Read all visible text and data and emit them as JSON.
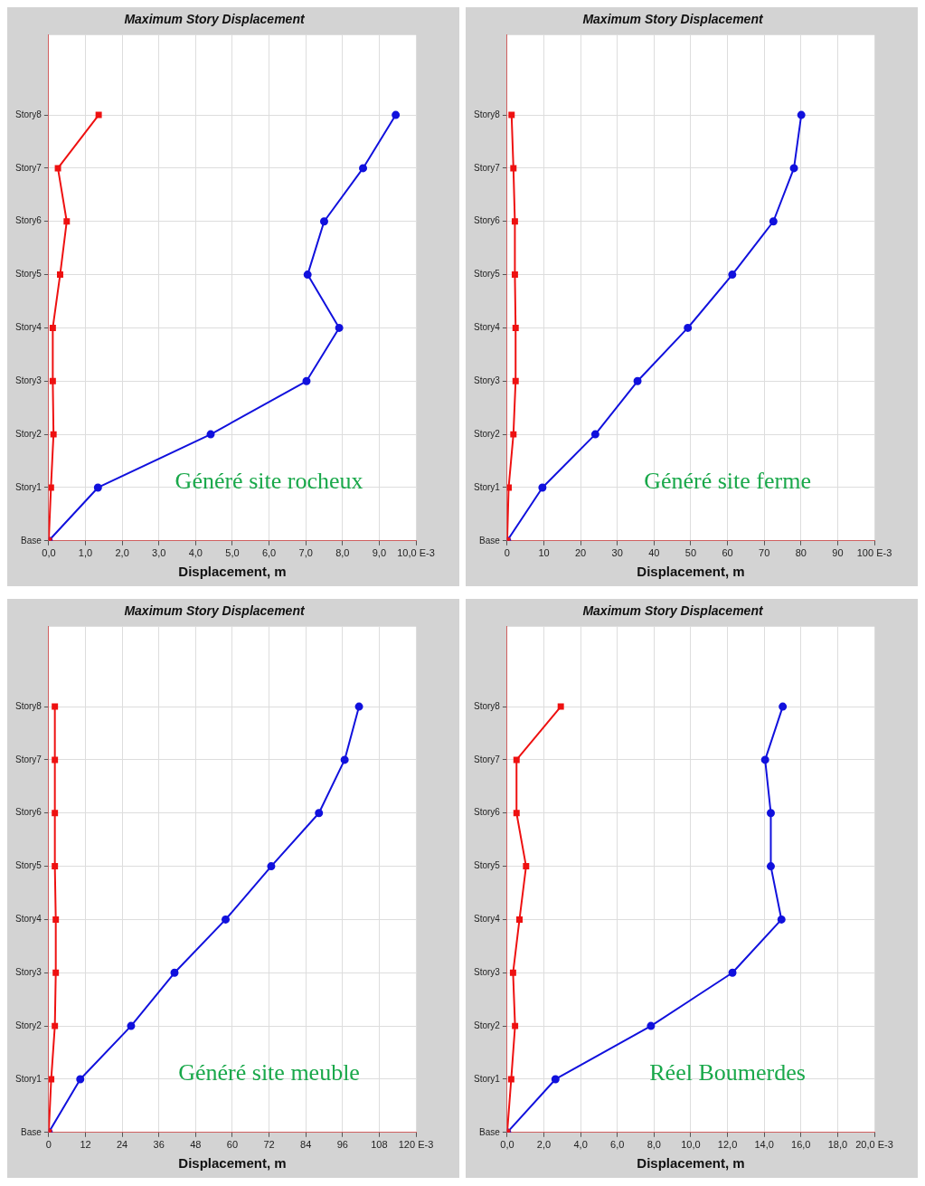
{
  "chart_data": [
    {
      "type": "line",
      "title": "Maximum Story Displacement",
      "xlabel": "Displacement, m",
      "orientation": "horizontal",
      "grid": true,
      "categories": [
        "Story8",
        "Story7",
        "Story6",
        "Story5",
        "Story4",
        "Story3",
        "Story2",
        "Story1",
        "Base"
      ],
      "xlim": [
        0,
        10
      ],
      "xticks": [
        {
          "value": 0,
          "label": "0,0"
        },
        {
          "value": 1,
          "label": "1,0"
        },
        {
          "value": 2,
          "label": "2,0"
        },
        {
          "value": 3,
          "label": "3,0"
        },
        {
          "value": 4,
          "label": "4,0"
        },
        {
          "value": 5,
          "label": "5,0"
        },
        {
          "value": 6,
          "label": "6,0"
        },
        {
          "value": 7,
          "label": "7,0"
        },
        {
          "value": 8,
          "label": "8,0"
        },
        {
          "value": 9,
          "label": "9,0"
        },
        {
          "value": 10,
          "label": "10,0 E-3"
        }
      ],
      "annotations": [
        "Généré site rocheux"
      ],
      "series": [
        {
          "color": "#ee1111",
          "marker": "square",
          "values": [
            1.36,
            0.25,
            0.49,
            0.31,
            0.11,
            0.11,
            0.13,
            0.06,
            0
          ]
        },
        {
          "color": "#1111dd",
          "marker": "circle",
          "values": [
            9.45,
            8.56,
            7.5,
            7.05,
            7.91,
            7.02,
            4.41,
            1.34,
            0
          ]
        }
      ]
    },
    {
      "type": "line",
      "title": "Maximum Story Displacement",
      "xlabel": "Displacement, m",
      "orientation": "horizontal",
      "grid": true,
      "categories": [
        "Story8",
        "Story7",
        "Story6",
        "Story5",
        "Story4",
        "Story3",
        "Story2",
        "Story1",
        "Base"
      ],
      "xlim": [
        0,
        100
      ],
      "xticks": [
        0,
        10,
        20,
        30,
        40,
        50,
        60,
        70,
        80,
        90,
        {
          "value": 100,
          "label": "100 E-3"
        }
      ],
      "annotations": [
        "Généré site ferme"
      ],
      "series": [
        {
          "color": "#ee1111",
          "marker": "square",
          "values": [
            1.2,
            1.7,
            2.1,
            2.1,
            2.3,
            2.3,
            1.7,
            0.4,
            0
          ]
        },
        {
          "color": "#1111dd",
          "marker": "circle",
          "values": [
            80.1,
            78.1,
            72.5,
            61.3,
            49.2,
            35.5,
            24,
            9.6,
            0
          ]
        }
      ]
    },
    {
      "type": "line",
      "title": "Maximum Story Displacement",
      "xlabel": "Displacement, m",
      "orientation": "horizontal",
      "grid": true,
      "categories": [
        "Story8",
        "Story7",
        "Story6",
        "Story5",
        "Story4",
        "Story3",
        "Story2",
        "Story1",
        "Base"
      ],
      "xlim": [
        0,
        120
      ],
      "xticks": [
        0,
        12,
        24,
        36,
        48,
        60,
        72,
        84,
        96,
        108,
        {
          "value": 120,
          "label": "120 E-3"
        }
      ],
      "annotations": [
        "Généré site meuble"
      ],
      "series": [
        {
          "color": "#ee1111",
          "marker": "square",
          "values": [
            2,
            2,
            2,
            2,
            2.3,
            2.3,
            2,
            0.8,
            0
          ]
        },
        {
          "color": "#1111dd",
          "marker": "circle",
          "values": [
            101.4,
            96.7,
            88.3,
            72.7,
            57.8,
            41.1,
            26.9,
            10.3,
            0
          ]
        }
      ]
    },
    {
      "type": "line",
      "title": "Maximum Story Displacement",
      "xlabel": "Displacement, m",
      "orientation": "horizontal",
      "grid": true,
      "categories": [
        "Story8",
        "Story7",
        "Story6",
        "Story5",
        "Story4",
        "Story3",
        "Story2",
        "Story1",
        "Base"
      ],
      "xlim": [
        0,
        20
      ],
      "xticks": [
        {
          "value": 0,
          "label": "0,0"
        },
        {
          "value": 2,
          "label": "2,0"
        },
        {
          "value": 4,
          "label": "4,0"
        },
        {
          "value": 6,
          "label": "6,0"
        },
        {
          "value": 8,
          "label": "8,0"
        },
        {
          "value": 10,
          "label": "10,0"
        },
        {
          "value": 12,
          "label": "12,0"
        },
        {
          "value": 14,
          "label": "14,0"
        },
        {
          "value": 16,
          "label": "16,0"
        },
        {
          "value": 18,
          "label": "18,0"
        },
        {
          "value": 20,
          "label": "20,0 E-3"
        }
      ],
      "annotations": [
        "Réel Boumerdes"
      ],
      "series": [
        {
          "color": "#ee1111",
          "marker": "square",
          "values": [
            2.92,
            0.51,
            0.51,
            1.03,
            0.67,
            0.32,
            0.43,
            0.22,
            0
          ]
        },
        {
          "color": "#1111dd",
          "marker": "circle",
          "values": [
            15.01,
            14.05,
            14.36,
            14.36,
            14.94,
            12.27,
            7.83,
            2.63,
            0
          ]
        }
      ]
    }
  ]
}
